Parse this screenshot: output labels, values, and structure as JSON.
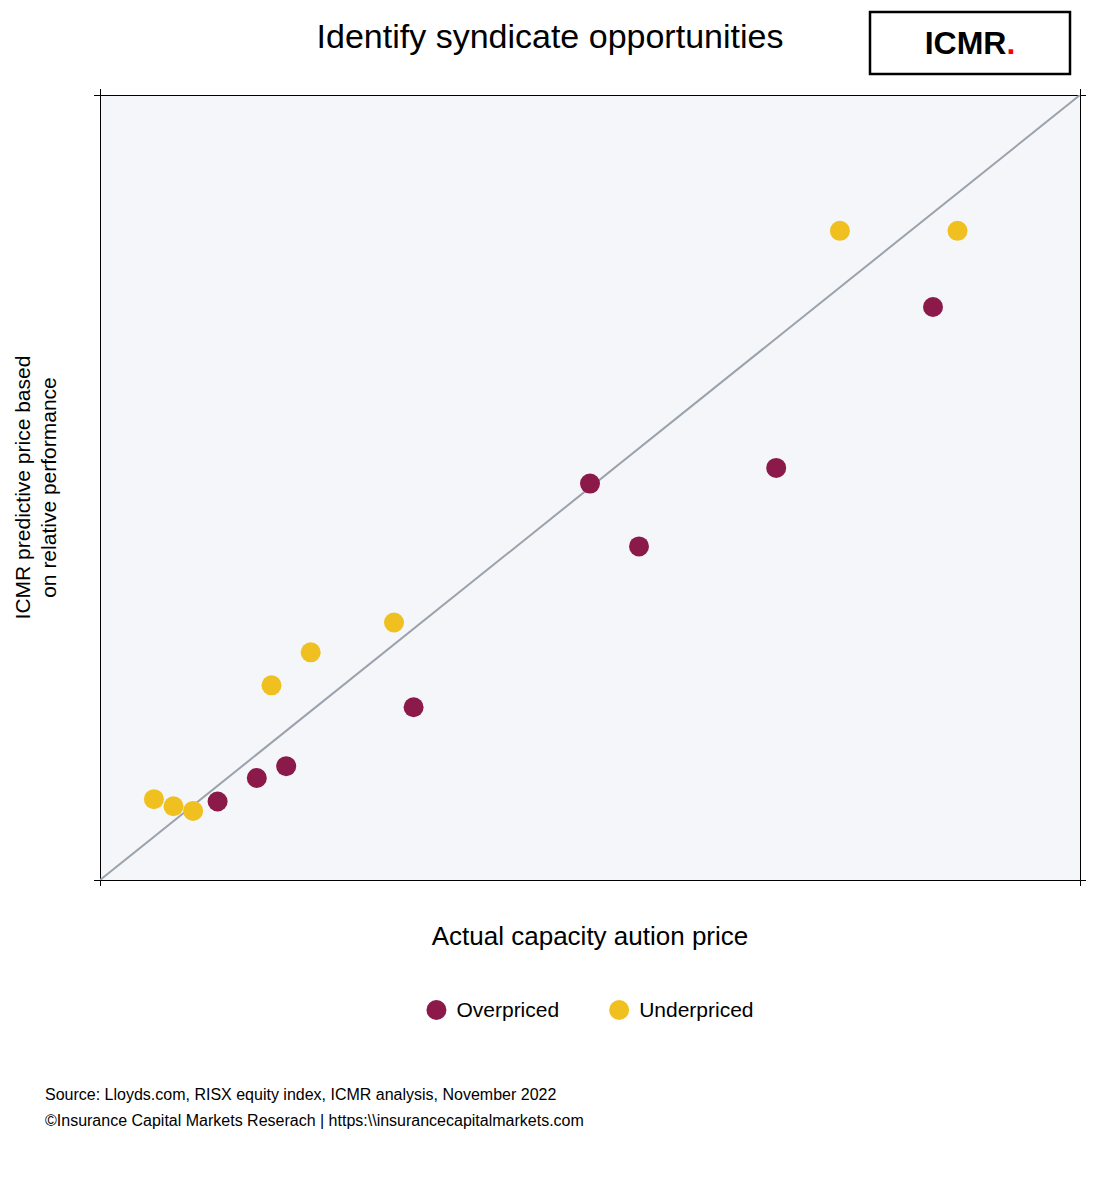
{
  "chart_data": {
    "type": "scatter",
    "title": "Identify syndicate opportunities",
    "x_label": "Actual capacity aution price",
    "y_label": "ICMR predictive price based\non relative performance",
    "xlim": [
      0,
      1
    ],
    "ylim": [
      0,
      1
    ],
    "tick_labels": false,
    "grid": false,
    "legend": "bottom",
    "series": [
      {
        "name": "Overpriced",
        "color": "#8B1A4A",
        "marker": "circle",
        "x": [
          0.12,
          0.16,
          0.19,
          0.32,
          0.5,
          0.55,
          0.69,
          0.85
        ],
        "values": [
          0.1,
          0.13,
          0.145,
          0.22,
          0.505,
          0.425,
          0.525,
          0.73
        ]
      },
      {
        "name": "Underpriced",
        "color": "#F0C020",
        "marker": "circle",
        "x": [
          0.055,
          0.075,
          0.095,
          0.175,
          0.215,
          0.3,
          0.755,
          0.875
        ],
        "values": [
          0.103,
          0.094,
          0.088,
          0.248,
          0.29,
          0.328,
          0.827,
          0.827
        ]
      }
    ],
    "annotations": [
      {
        "text": "ICMR",
        "color": "#000000"
      },
      {
        "text": ".",
        "color": "#FF0000"
      },
      {
        "text": "Source: Lloyds.com, RISX equity index, ICMR analysis, November 2022",
        "color": "#000000"
      },
      {
        "text": "©Insurance Capital Markets Reserach | https:\\\\insurancecapitalmarkets.com",
        "color": "#000000"
      }
    ]
  }
}
